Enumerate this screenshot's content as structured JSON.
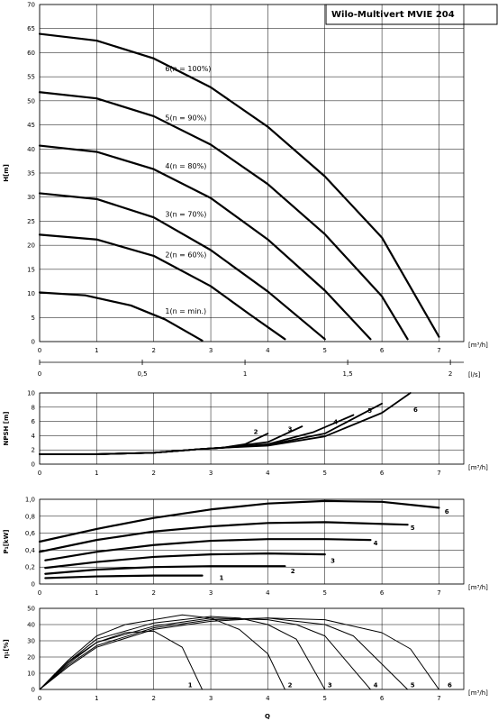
{
  "title": "Wilo-Multivert MVIE 204",
  "colors": {
    "line": "#000000",
    "grid": "#000000",
    "background": "#ffffff"
  },
  "x_axis": {
    "ticks": [
      "0",
      "1",
      "2",
      "3",
      "4",
      "5",
      "6",
      "7"
    ],
    "unit": "[m³/h]",
    "secondary_ticks": [
      "0",
      "0,5",
      "1",
      "1,5",
      "2"
    ],
    "secondary_unit": "[l/s]",
    "label": "Q"
  },
  "chart_data": [
    {
      "type": "line",
      "ylabel": "H[m]",
      "xlim": [
        0,
        8.3
      ],
      "ylim": [
        0,
        70
      ],
      "yticks": [
        "0",
        "5",
        "10",
        "15",
        "20",
        "25",
        "30",
        "35",
        "40",
        "45",
        "50",
        "55",
        "60",
        "65",
        "70"
      ],
      "xunit": "[m³/h]",
      "grid": true,
      "series": [
        {
          "name": "1(n = min.)",
          "label_x": 2.2,
          "label_y": 6.4,
          "x": [
            0,
            0.8,
            1.6,
            2.2,
            2.85
          ],
          "y": [
            10.2,
            9.6,
            7.5,
            4.6,
            0.2
          ]
        },
        {
          "name": "2(n = 60%)",
          "label_x": 2.2,
          "label_y": 18.1,
          "x": [
            0,
            1,
            2,
            3,
            3.7,
            4.3
          ],
          "y": [
            22.2,
            21.2,
            17.8,
            11.5,
            5.5,
            0.5
          ]
        },
        {
          "name": "3(n = 70%)",
          "label_x": 2.2,
          "label_y": 26.5,
          "x": [
            0,
            1,
            2,
            3,
            4,
            5
          ],
          "y": [
            30.8,
            29.6,
            25.8,
            19.0,
            10.4,
            0.5
          ]
        },
        {
          "name": "4(n = 80%)",
          "label_x": 2.2,
          "label_y": 36.5,
          "x": [
            0,
            1,
            2,
            3,
            4,
            5,
            5.8
          ],
          "y": [
            40.7,
            39.4,
            35.8,
            29.8,
            21.2,
            10.6,
            0.5
          ]
        },
        {
          "name": "5(n = 90%)",
          "label_x": 2.2,
          "label_y": 46.5,
          "x": [
            0,
            1,
            2,
            3,
            4,
            5,
            6,
            6.45
          ],
          "y": [
            51.8,
            50.5,
            46.8,
            40.9,
            32.7,
            22.3,
            9.4,
            0.5
          ]
        },
        {
          "name": "6(n = 100%)",
          "label_x": 2.2,
          "label_y": 56.7,
          "x": [
            0,
            1,
            2,
            3,
            4,
            5,
            6,
            7
          ],
          "y": [
            63.9,
            62.5,
            58.8,
            52.8,
            44.6,
            34.3,
            21.6,
            1.0
          ]
        }
      ]
    },
    {
      "type": "line",
      "ylabel": "NPSH [m]",
      "xlim": [
        0,
        8.3
      ],
      "ylim": [
        0,
        10
      ],
      "yticks": [
        "0",
        "2",
        "4",
        "6",
        "8",
        "10"
      ],
      "xunit": "[m³/h]",
      "grid": true,
      "series": [
        {
          "name": "2",
          "label_x": 3.75,
          "label_y": 4.6,
          "x": [
            0,
            1,
            2,
            2.8,
            3.2,
            3.6,
            4.0
          ],
          "y": [
            1.4,
            1.4,
            1.6,
            2.1,
            2.3,
            2.8,
            4.3
          ]
        },
        {
          "name": "3",
          "label_x": 4.35,
          "label_y": 5.0,
          "x": [
            0,
            1,
            2,
            2.8,
            3.2,
            4.0,
            4.6
          ],
          "y": [
            1.4,
            1.4,
            1.6,
            2.1,
            2.3,
            3.1,
            5.3
          ]
        },
        {
          "name": "4",
          "label_x": 5.15,
          "label_y": 6.0,
          "x": [
            0,
            1,
            2,
            2.8,
            3.2,
            4.0,
            4.8,
            5.5
          ],
          "y": [
            1.4,
            1.4,
            1.6,
            2.1,
            2.3,
            2.8,
            4.5,
            6.9
          ]
        },
        {
          "name": "5",
          "label_x": 5.75,
          "label_y": 7.6,
          "x": [
            0,
            1,
            2,
            2.8,
            3.2,
            4.0,
            5.0,
            6.0
          ],
          "y": [
            1.4,
            1.4,
            1.6,
            2.1,
            2.3,
            2.7,
            4.3,
            8.5
          ]
        },
        {
          "name": "6",
          "label_x": 6.55,
          "label_y": 7.7,
          "x": [
            0,
            1,
            2,
            2.8,
            3.2,
            4.0,
            5.0,
            6.0,
            6.5
          ],
          "y": [
            1.4,
            1.4,
            1.6,
            2.1,
            2.3,
            2.6,
            3.9,
            7.2,
            10.0
          ]
        }
      ]
    },
    {
      "type": "line",
      "ylabel": "P₁[kW]",
      "xlim": [
        0,
        8.3
      ],
      "ylim": [
        0,
        1.0
      ],
      "yticks": [
        "0",
        "0,2",
        "0,4",
        "0,6",
        "0,8",
        "1,0"
      ],
      "xunit": "[m³/h]",
      "grid": true,
      "series": [
        {
          "name": "1",
          "label_x": 3.15,
          "label_y": 0.08,
          "x": [
            0.1,
            1,
            2,
            2.85
          ],
          "y": [
            0.07,
            0.09,
            0.1,
            0.1
          ]
        },
        {
          "name": "2",
          "label_x": 4.4,
          "label_y": 0.16,
          "x": [
            0.1,
            1,
            2,
            3,
            4.3
          ],
          "y": [
            0.12,
            0.17,
            0.2,
            0.21,
            0.21
          ]
        },
        {
          "name": "3",
          "label_x": 5.1,
          "label_y": 0.28,
          "x": [
            0.1,
            1,
            2,
            3,
            4,
            5
          ],
          "y": [
            0.19,
            0.26,
            0.32,
            0.35,
            0.36,
            0.35
          ]
        },
        {
          "name": "4",
          "label_x": 5.85,
          "label_y": 0.49,
          "x": [
            0.1,
            1,
            2,
            3,
            4,
            5,
            5.8
          ],
          "y": [
            0.28,
            0.38,
            0.46,
            0.51,
            0.53,
            0.53,
            0.52
          ]
        },
        {
          "name": "5",
          "label_x": 6.5,
          "label_y": 0.67,
          "x": [
            0,
            1,
            2,
            3,
            4,
            5,
            6.45
          ],
          "y": [
            0.38,
            0.52,
            0.62,
            0.68,
            0.72,
            0.73,
            0.7
          ]
        },
        {
          "name": "6",
          "label_x": 7.1,
          "label_y": 0.86,
          "x": [
            0,
            1,
            2,
            3,
            4,
            5,
            6,
            7
          ],
          "y": [
            0.5,
            0.65,
            0.78,
            0.88,
            0.95,
            0.98,
            0.97,
            0.9
          ]
        }
      ]
    },
    {
      "type": "line",
      "ylabel": "η₁[%]",
      "xlim": [
        0,
        8.3
      ],
      "ylim": [
        0,
        50
      ],
      "yticks": [
        "0",
        "10",
        "20",
        "30",
        "40",
        "50"
      ],
      "xunit": "[m³/h]",
      "xlabel": "Q",
      "grid": true,
      "series": [
        {
          "name": "1",
          "label_x": 2.6,
          "label_y": 3.0,
          "x": [
            0,
            0.5,
            1,
            1.5,
            2,
            2.5,
            2.85
          ],
          "y": [
            0,
            17,
            29,
            35,
            36,
            26,
            0
          ]
        },
        {
          "name": "2",
          "label_x": 4.35,
          "label_y": 3.0,
          "x": [
            0,
            0.5,
            1,
            1.5,
            2.5,
            3,
            3.5,
            4,
            4.3
          ],
          "y": [
            0,
            18,
            33,
            40,
            46,
            44,
            37,
            22,
            0
          ]
        },
        {
          "name": "3",
          "label_x": 5.05,
          "label_y": 3.0,
          "x": [
            0,
            0.5,
            1,
            2,
            3,
            3.5,
            4,
            4.5,
            5
          ],
          "y": [
            0,
            17,
            31,
            41,
            45,
            44,
            40,
            31,
            0
          ]
        },
        {
          "name": "4",
          "label_x": 5.85,
          "label_y": 3.0,
          "x": [
            0,
            0.5,
            1,
            2,
            3,
            4,
            4.5,
            5,
            5.8
          ],
          "y": [
            0,
            16,
            29,
            39,
            44,
            43,
            40,
            33,
            0
          ]
        },
        {
          "name": "5",
          "label_x": 6.5,
          "label_y": 3.0,
          "x": [
            0,
            0.5,
            1,
            2,
            3,
            4,
            5,
            5.5,
            6.45
          ],
          "y": [
            0,
            15,
            27,
            38,
            43,
            44,
            40,
            33,
            0
          ]
        },
        {
          "name": "6",
          "label_x": 7.15,
          "label_y": 3.0,
          "x": [
            0,
            0.5,
            1,
            2,
            3,
            4,
            5,
            6,
            6.5,
            7
          ],
          "y": [
            0,
            14,
            26,
            37,
            42,
            44,
            43,
            35,
            25,
            0
          ]
        }
      ]
    }
  ]
}
